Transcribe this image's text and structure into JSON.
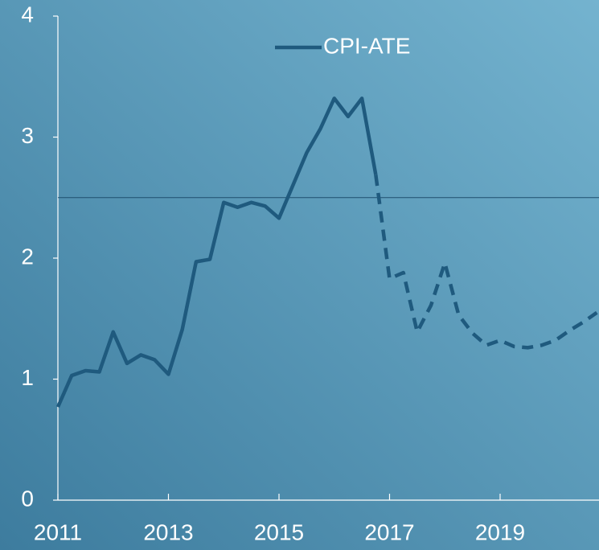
{
  "chart_data": {
    "type": "line",
    "x": [
      2011,
      2011.25,
      2011.5,
      2011.75,
      2012,
      2012.25,
      2012.5,
      2012.75,
      2013,
      2013.25,
      2013.5,
      2013.75,
      2014,
      2014.25,
      2014.5,
      2014.75,
      2015,
      2015.25,
      2015.5,
      2015.75,
      2016,
      2016.25,
      2016.5,
      2016.75,
      2017,
      2017.25,
      2017.5,
      2017.75,
      2018,
      2018.25,
      2018.5,
      2018.75,
      2019,
      2019.25,
      2019.5,
      2019.75,
      2020,
      2020.25,
      2020.5,
      2020.75
    ],
    "series": [
      {
        "name": "CPI-ATE",
        "color": "#1f5a7e",
        "values": [
          0.77,
          1.03,
          1.07,
          1.06,
          1.39,
          1.13,
          1.2,
          1.16,
          1.04,
          1.41,
          1.97,
          1.99,
          2.46,
          2.42,
          2.46,
          2.43,
          2.33,
          2.6,
          2.87,
          3.07,
          3.32,
          3.17,
          3.32,
          2.69,
          1.83,
          1.88,
          1.39,
          1.61,
          1.96,
          1.53,
          1.38,
          1.28,
          1.32,
          1.27,
          1.26,
          1.28,
          1.32,
          1.4,
          1.47,
          1.55
        ]
      }
    ],
    "projection_from": 2016.75,
    "reference_line": 2.5,
    "xlim": [
      2011,
      2020.8
    ],
    "xticks": [
      2011,
      2013,
      2015,
      2017,
      2019
    ],
    "ylim": [
      0,
      4
    ],
    "yticks": [
      0,
      1,
      2,
      3,
      4
    ]
  }
}
